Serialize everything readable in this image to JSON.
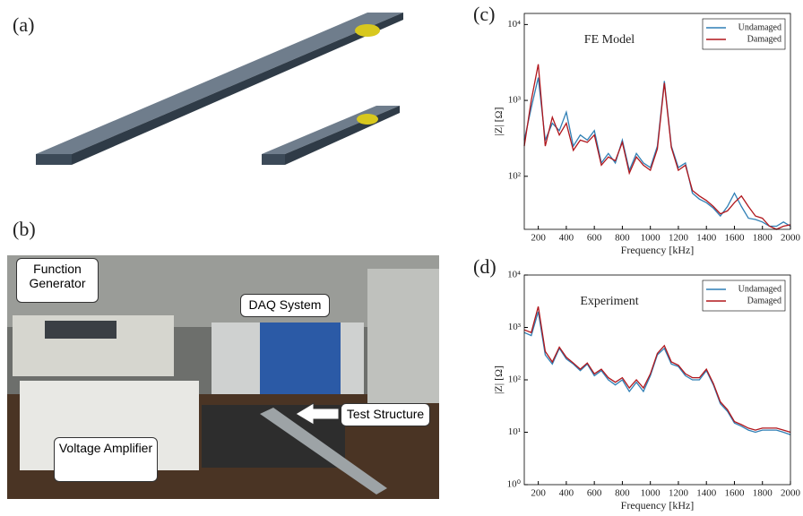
{
  "panels": [
    {
      "label": "(a)"
    },
    {
      "label": "(b)",
      "callouts": [
        "Function Generator",
        "DAQ System",
        "Voltage Amplifier",
        "Test Structure"
      ]
    }
  ],
  "chart_data": [
    {
      "type": "line",
      "panel_label": "(c)",
      "annotation": "FE Model",
      "x_label": "Frequency [kHz]",
      "y_label": "|Z| [Ω]",
      "log_y": true,
      "grid": false,
      "legend": "upper right",
      "x": [
        100,
        150,
        200,
        250,
        300,
        350,
        400,
        450,
        500,
        550,
        600,
        650,
        700,
        750,
        800,
        850,
        900,
        950,
        1000,
        1050,
        1100,
        1150,
        1200,
        1250,
        1300,
        1350,
        1400,
        1450,
        1500,
        1550,
        1600,
        1650,
        1700,
        1750,
        1800,
        1850,
        1900,
        1950,
        2000
      ],
      "series": [
        {
          "name": "Undamaged",
          "color": "#2f7fb5",
          "values": [
            300,
            800,
            2000,
            300,
            500,
            400,
            700,
            250,
            350,
            300,
            400,
            150,
            200,
            150,
            300,
            120,
            200,
            150,
            130,
            250,
            1800,
            250,
            130,
            150,
            60,
            50,
            45,
            38,
            30,
            40,
            60,
            40,
            28,
            27,
            25,
            22,
            22,
            25,
            22
          ]
        },
        {
          "name": "Damaged",
          "color": "#b0161c",
          "values": [
            250,
            1000,
            3000,
            250,
            600,
            350,
            500,
            220,
            300,
            280,
            350,
            140,
            180,
            160,
            280,
            110,
            180,
            140,
            120,
            230,
            1700,
            240,
            120,
            140,
            65,
            55,
            48,
            40,
            32,
            35,
            45,
            55,
            40,
            30,
            28,
            22,
            20,
            22,
            23
          ]
        }
      ],
      "xlim": [
        100,
        2000
      ],
      "xticks": [
        200,
        400,
        600,
        800,
        1000,
        1200,
        1400,
        1600,
        1800,
        2000
      ],
      "ylim": [
        20,
        14000
      ],
      "yticks": [
        {
          "value": 100,
          "label": "10²"
        },
        {
          "value": 1000,
          "label": "10³"
        },
        {
          "value": 10000,
          "label": "10⁴"
        }
      ]
    },
    {
      "type": "line",
      "panel_label": "(d)",
      "annotation": "Experiment",
      "x_label": "Frequency [kHz]",
      "y_label": "|Z| [Ω]",
      "log_y": true,
      "grid": false,
      "legend": "upper right",
      "x": [
        100,
        150,
        200,
        250,
        300,
        350,
        400,
        450,
        500,
        550,
        600,
        650,
        700,
        750,
        800,
        850,
        900,
        950,
        1000,
        1050,
        1100,
        1150,
        1200,
        1250,
        1300,
        1350,
        1400,
        1450,
        1500,
        1550,
        1600,
        1650,
        1700,
        1750,
        1800,
        1850,
        1900,
        1950,
        2000
      ],
      "series": [
        {
          "name": "Undamaged",
          "color": "#2f7fb5",
          "values": [
            800,
            700,
            2000,
            300,
            200,
            400,
            250,
            200,
            150,
            200,
            120,
            150,
            100,
            80,
            100,
            60,
            90,
            60,
            120,
            300,
            400,
            200,
            180,
            120,
            100,
            100,
            150,
            80,
            35,
            25,
            15,
            13,
            11,
            10,
            11,
            11,
            11,
            10,
            9
          ]
        },
        {
          "name": "Damaged",
          "color": "#b0161c",
          "values": [
            900,
            800,
            2500,
            350,
            220,
            420,
            270,
            210,
            160,
            210,
            130,
            160,
            110,
            90,
            110,
            70,
            100,
            70,
            130,
            320,
            450,
            220,
            190,
            130,
            110,
            110,
            160,
            85,
            38,
            27,
            16,
            14,
            12,
            11,
            12,
            12,
            12,
            11,
            10
          ]
        }
      ],
      "xlim": [
        100,
        2000
      ],
      "xticks": [
        200,
        400,
        600,
        800,
        1000,
        1200,
        1400,
        1600,
        1800,
        2000
      ],
      "ylim": [
        1,
        10000
      ],
      "yticks": [
        {
          "value": 1,
          "label": "10⁰"
        },
        {
          "value": 10,
          "label": "10¹"
        },
        {
          "value": 100,
          "label": "10²"
        },
        {
          "value": 1000,
          "label": "10³"
        },
        {
          "value": 10000,
          "label": "10⁴"
        }
      ]
    }
  ]
}
